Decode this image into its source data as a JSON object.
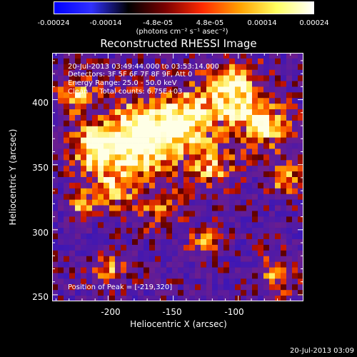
{
  "colorbar": {
    "ticks": [
      "-0.00024",
      "-0.00014",
      "-4.8e-05",
      "4.8e-05",
      "0.00014",
      "0.00024"
    ],
    "tick_values": [
      -0.00024,
      -0.00014,
      -4.8e-05,
      4.8e-05,
      0.00014,
      0.00024
    ],
    "range": [
      -0.00024,
      0.00024
    ],
    "units": "(photons cm⁻² s⁻¹ asec⁻²)",
    "colors": [
      "#0000ff",
      "#3030ff",
      "#000000",
      "#7a0000",
      "#ff2a00",
      "#ffa000",
      "#ffff60",
      "#ffffff"
    ]
  },
  "chart_data": {
    "type": "heatmap",
    "title": "Reconstructed RHESSI Image",
    "xlabel": "Heliocentric X (arcsec)",
    "ylabel": "Heliocentric Y (arcsec)",
    "xlim": [
      -243,
      -50
    ],
    "ylim": [
      245,
      436
    ],
    "x_ticks": [
      -200,
      -150,
      -100
    ],
    "y_ticks": [
      250,
      300,
      350,
      400
    ],
    "annotations": [
      "20-Jul-2013 03:49:44.000 to 03:53:14.000",
      "Detectors: 3F 5F 6F 7F 8F 9F, Att 0",
      "Energy Range: 25.0 - 50.0 keV",
      "Clean     Total counts: 6.75E+03"
    ],
    "peak_label": "Position of Peak = [-219,320]",
    "peak_position": [
      -219,
      320
    ]
  },
  "timestamp": "20-Jul-2013 03:09"
}
